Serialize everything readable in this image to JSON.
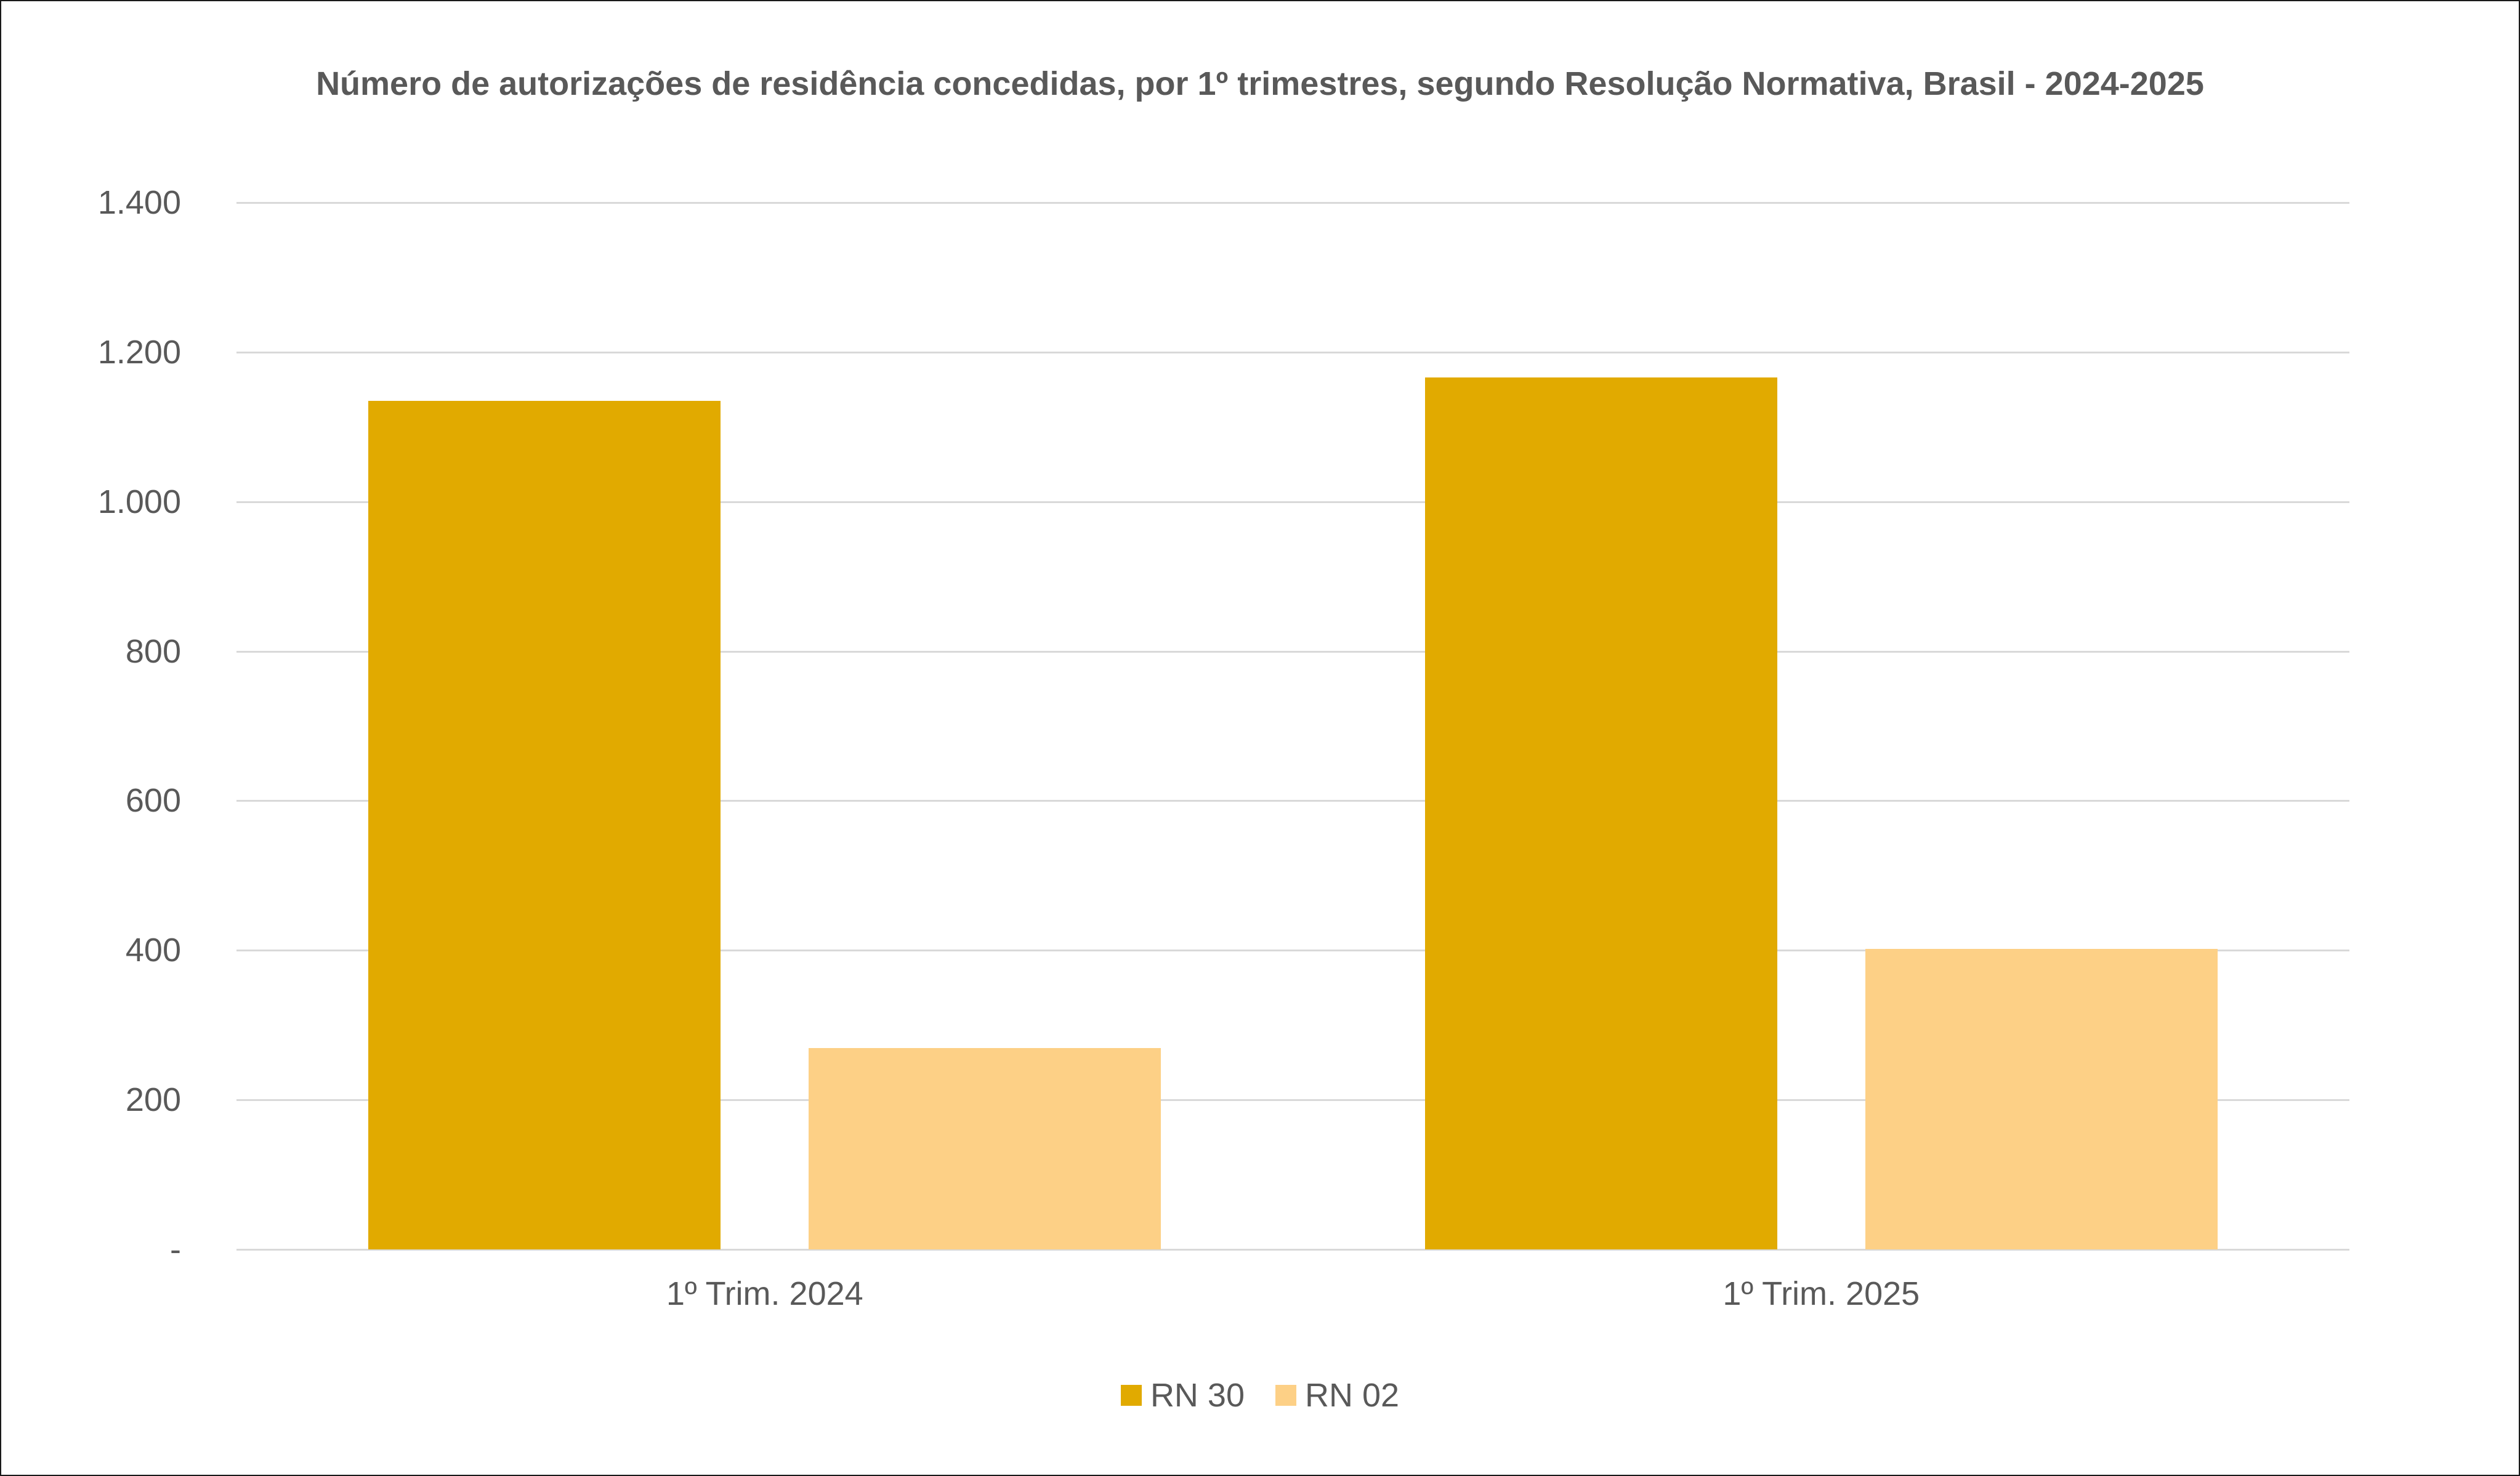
{
  "chart_data": {
    "type": "bar",
    "title": "Número de autorizações de residência concedidas, por 1º trimestres, segundo Resolução Normativa, Brasil - 2024-2025",
    "xlabel": "",
    "ylabel": "",
    "categories": [
      "1º Trim. 2024",
      "1º Trim. 2025"
    ],
    "series": [
      {
        "name": "RN 30",
        "color": "#E1AA00",
        "values": [
          1135,
          1166
        ]
      },
      {
        "name": "RN 02",
        "color": "#FDD086",
        "values": [
          269,
          402
        ]
      }
    ],
    "ylim": [
      0,
      1400
    ],
    "yticks": [
      {
        "value": 0,
        "label": "-"
      },
      {
        "value": 200,
        "label": "200"
      },
      {
        "value": 400,
        "label": "400"
      },
      {
        "value": 600,
        "label": "600"
      },
      {
        "value": 800,
        "label": "800"
      },
      {
        "value": 1000,
        "label": "1.000"
      },
      {
        "value": 1200,
        "label": "1.200"
      },
      {
        "value": 1400,
        "label": "1.400"
      }
    ],
    "grid": true,
    "legend_position": "bottom"
  }
}
